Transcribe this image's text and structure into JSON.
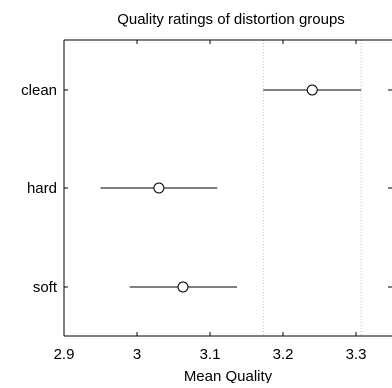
{
  "chart_data": {
    "type": "scatter",
    "title": "Quality ratings of distortion groups",
    "xlabel": "Mean Quality",
    "ylabel": "",
    "xlim": [
      2.9,
      3.35
    ],
    "x_ticks": [
      2.9,
      3.0,
      3.1,
      3.2,
      3.3
    ],
    "x_tick_labels": [
      "2.9",
      "3",
      "3.1",
      "3.2",
      "3.3"
    ],
    "categories": [
      "clean",
      "hard",
      "soft"
    ],
    "points": [
      {
        "category": "clean",
        "mean": 3.24,
        "low": 3.173,
        "high": 3.307
      },
      {
        "category": "hard",
        "mean": 3.03,
        "low": 2.95,
        "high": 3.11
      },
      {
        "category": "soft",
        "mean": 3.063,
        "low": 2.99,
        "high": 3.137
      }
    ],
    "reference_lines_x": [
      3.173,
      3.307
    ],
    "marker": "open-circle",
    "grid": false,
    "colors": {
      "marks": "#000000",
      "reference_lines": "#bfbfbf",
      "background": "#ffffff"
    }
  }
}
